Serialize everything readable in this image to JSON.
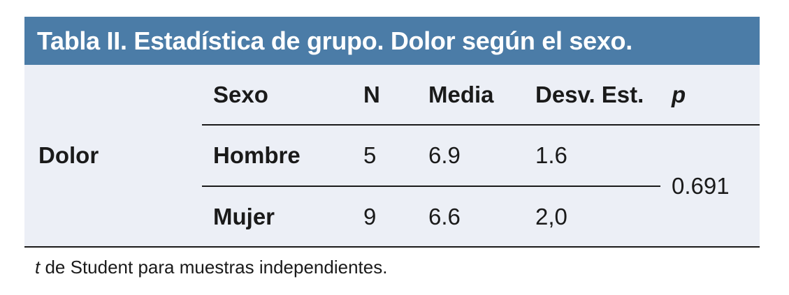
{
  "title_bar": {
    "title": "Tabla II. Estadística de grupo. Dolor según el sexo."
  },
  "table": {
    "row_group_label": "Dolor",
    "columns": {
      "sexo": "Sexo",
      "n": "N",
      "media": "Media",
      "desv": "Desv. Est.",
      "p": "p"
    },
    "rows": [
      {
        "sexo": "Hombre",
        "n": "5",
        "media": "6.9",
        "desv": "1.6"
      },
      {
        "sexo": "Mujer",
        "n": "9",
        "media": "6.6",
        "desv": "2,0"
      }
    ],
    "p_value": "0.691"
  },
  "footnote": {
    "italic_part": "t",
    "rest": " de Student para muestras independientes."
  },
  "colors": {
    "header_bg": "#4b7ca7",
    "body_bg": "#eceff6",
    "line": "#1a1a1a",
    "title_text": "#ffffff",
    "body_text": "#1a1a1a"
  }
}
